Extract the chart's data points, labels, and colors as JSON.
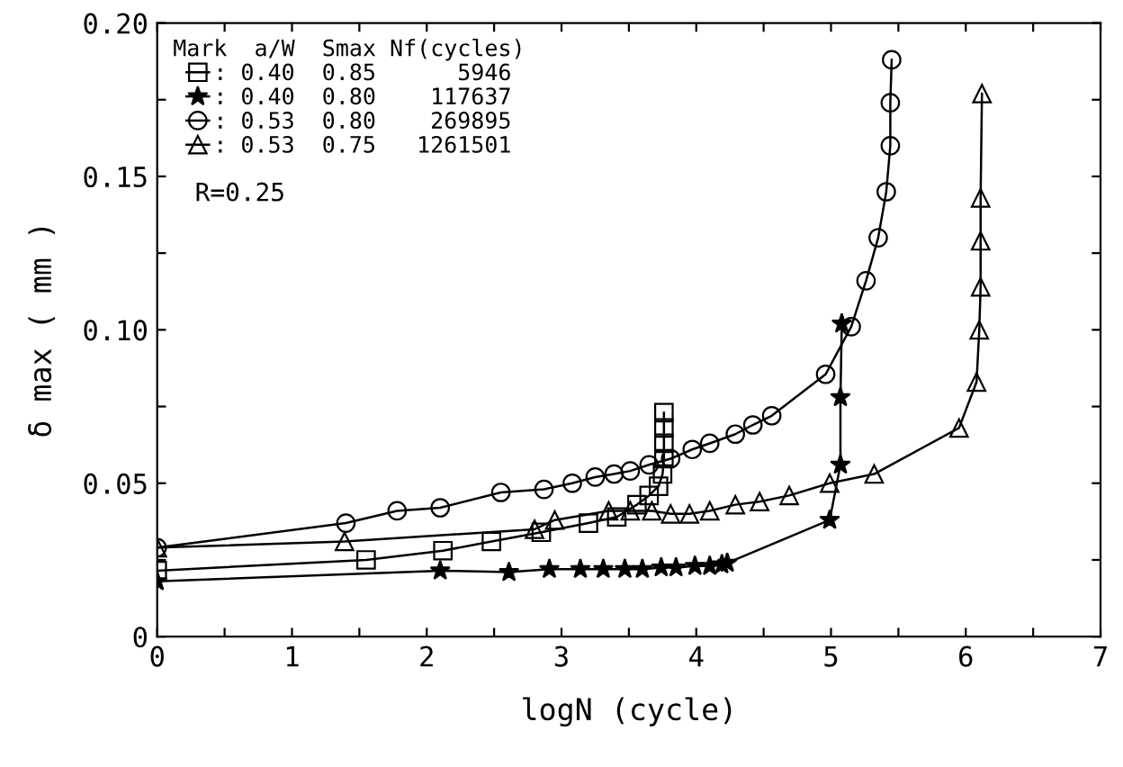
{
  "chart_data": {
    "type": "line",
    "xlabel": "logN (cycle)",
    "ylabel": "δ max ( mm )",
    "xlim": [
      0,
      7
    ],
    "ylim": [
      0,
      0.2
    ],
    "xticks": [
      0,
      {
        "value": 0.5,
        "label": null
      },
      1,
      {
        "value": 1.5,
        "label": null
      },
      2,
      {
        "value": 2.5,
        "label": null
      },
      3,
      {
        "value": 3.5,
        "label": null
      },
      4,
      {
        "value": 4.5,
        "label": null
      },
      5,
      {
        "value": 5.5,
        "label": null
      },
      6,
      {
        "value": 6.5,
        "label": null
      },
      7
    ],
    "yticks": [
      {
        "value": 0,
        "label": "0"
      },
      {
        "value": 0.025,
        "label": null
      },
      0.05,
      {
        "value": 0.075,
        "label": null
      },
      {
        "value": 0.1,
        "label": "0.10"
      },
      {
        "value": 0.125,
        "label": null
      },
      0.15,
      {
        "value": 0.175,
        "label": null
      },
      {
        "value": 0.2,
        "label": "0.20"
      }
    ],
    "grid": false,
    "legend": "top left",
    "legend_title": "Mark  a/W  Smax Nf(cycles)",
    "line_style": "solid",
    "annotations": [
      "R=0.25"
    ],
    "series": [
      {
        "name": ": 0.40  0.85      5946",
        "color": "#000000",
        "marker": "square",
        "x": [
          0,
          1.55,
          2.12,
          2.48,
          2.85,
          3.2,
          3.41,
          3.56,
          3.65,
          3.72,
          3.75,
          3.76,
          3.76,
          3.76,
          3.76
        ],
        "values": [
          0.0215,
          0.025,
          0.028,
          0.031,
          0.034,
          0.037,
          0.039,
          0.043,
          0.046,
          0.049,
          0.053,
          0.058,
          0.063,
          0.068,
          0.073
        ]
      },
      {
        "name": ": 0.40  0.80    117637",
        "color": "#000000",
        "marker": "star",
        "x": [
          0,
          2.1,
          2.61,
          2.91,
          3.14,
          3.31,
          3.47,
          3.6,
          3.74,
          3.85,
          3.99,
          4.1,
          4.19,
          4.23,
          4.99,
          5.07,
          5.07,
          5.08
        ],
        "values": [
          0.018,
          0.0215,
          0.021,
          0.022,
          0.022,
          0.022,
          0.022,
          0.022,
          0.0225,
          0.0225,
          0.023,
          0.023,
          0.0235,
          0.024,
          0.038,
          0.056,
          0.078,
          0.102
        ]
      },
      {
        "name": ": 0.53  0.80    269895",
        "color": "#000000",
        "marker": "circle",
        "x": [
          0,
          1.4,
          1.78,
          2.1,
          2.55,
          2.87,
          3.08,
          3.25,
          3.39,
          3.51,
          3.65,
          3.81,
          3.97,
          4.1,
          4.29,
          4.42,
          4.56,
          4.96,
          5.15,
          5.26,
          5.35,
          5.41,
          5.44,
          5.44,
          5.45
        ],
        "values": [
          0.029,
          0.037,
          0.041,
          0.042,
          0.047,
          0.048,
          0.05,
          0.052,
          0.053,
          0.054,
          0.056,
          0.058,
          0.061,
          0.063,
          0.066,
          0.069,
          0.072,
          0.0855,
          0.101,
          0.116,
          0.13,
          0.145,
          0.16,
          0.174,
          0.188
        ]
      },
      {
        "name": ": 0.53  0.75   1261501",
        "color": "#000000",
        "marker": "triangle",
        "x": [
          0,
          1.39,
          2.8,
          2.95,
          3.35,
          3.51,
          3.67,
          3.81,
          3.95,
          4.1,
          4.29,
          4.47,
          4.69,
          4.99,
          5.32,
          5.95,
          6.08,
          6.1,
          6.11,
          6.11,
          6.11,
          6.12
        ],
        "values": [
          0.029,
          0.031,
          0.035,
          0.038,
          0.041,
          0.041,
          0.041,
          0.04,
          0.04,
          0.041,
          0.043,
          0.044,
          0.046,
          0.05,
          0.053,
          0.068,
          0.083,
          0.1,
          0.114,
          0.129,
          0.143,
          0.177
        ]
      }
    ]
  }
}
